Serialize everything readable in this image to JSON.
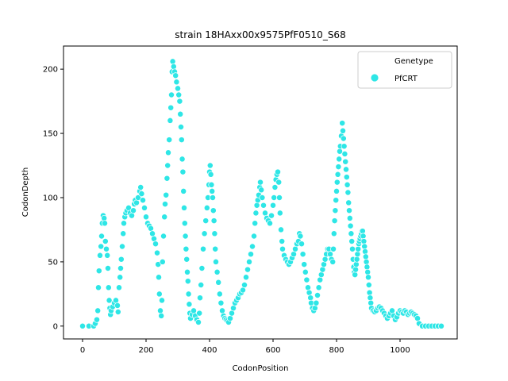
{
  "chart_data": {
    "type": "scatter",
    "title": "strain 18HAxx00x9575PfF0510_S68",
    "xlabel": "CodonPosition",
    "ylabel": "CodonDepth",
    "xlim": [
      -60,
      1180
    ],
    "ylim": [
      -10,
      218
    ],
    "xticks": [
      0,
      200,
      400,
      600,
      800,
      1000
    ],
    "yticks": [
      0,
      50,
      100,
      150,
      200
    ],
    "grid": false,
    "legend": {
      "title": "Genetype",
      "placement": "top-right",
      "entries": [
        {
          "name": "PfCRT",
          "color": "#2ee6e6"
        }
      ]
    },
    "series": [
      {
        "name": "PfCRT",
        "color": "#2ee6e6",
        "points": [
          [
            0,
            0
          ],
          [
            20,
            0
          ],
          [
            35,
            0
          ],
          [
            40,
            2
          ],
          [
            45,
            5
          ],
          [
            48,
            12
          ],
          [
            50,
            30
          ],
          [
            52,
            43
          ],
          [
            55,
            55
          ],
          [
            58,
            62
          ],
          [
            60,
            70
          ],
          [
            62,
            80
          ],
          [
            65,
            86
          ],
          [
            68,
            84
          ],
          [
            70,
            80
          ],
          [
            72,
            66
          ],
          [
            75,
            60
          ],
          [
            78,
            55
          ],
          [
            80,
            45
          ],
          [
            82,
            30
          ],
          [
            84,
            20
          ],
          [
            86,
            14
          ],
          [
            88,
            9
          ],
          [
            90,
            12
          ],
          [
            95,
            15
          ],
          [
            100,
            18
          ],
          [
            105,
            20
          ],
          [
            110,
            16
          ],
          [
            112,
            11
          ],
          [
            115,
            30
          ],
          [
            118,
            38
          ],
          [
            120,
            45
          ],
          [
            122,
            52
          ],
          [
            125,
            62
          ],
          [
            128,
            72
          ],
          [
            130,
            80
          ],
          [
            133,
            85
          ],
          [
            136,
            88
          ],
          [
            140,
            90
          ],
          [
            145,
            92
          ],
          [
            150,
            88
          ],
          [
            155,
            86
          ],
          [
            160,
            90
          ],
          [
            163,
            95
          ],
          [
            166,
            98
          ],
          [
            170,
            96
          ],
          [
            175,
            100
          ],
          [
            180,
            105
          ],
          [
            183,
            108
          ],
          [
            186,
            103
          ],
          [
            190,
            98
          ],
          [
            195,
            92
          ],
          [
            200,
            85
          ],
          [
            205,
            80
          ],
          [
            210,
            78
          ],
          [
            215,
            76
          ],
          [
            220,
            72
          ],
          [
            225,
            68
          ],
          [
            230,
            64
          ],
          [
            235,
            57
          ],
          [
            238,
            48
          ],
          [
            240,
            38
          ],
          [
            242,
            25
          ],
          [
            245,
            12
          ],
          [
            248,
            8
          ],
          [
            250,
            20
          ],
          [
            252,
            50
          ],
          [
            255,
            70
          ],
          [
            258,
            85
          ],
          [
            260,
            95
          ],
          [
            263,
            102
          ],
          [
            266,
            115
          ],
          [
            268,
            125
          ],
          [
            270,
            135
          ],
          [
            273,
            145
          ],
          [
            276,
            160
          ],
          [
            278,
            170
          ],
          [
            280,
            180
          ],
          [
            282,
            198
          ],
          [
            284,
            206
          ],
          [
            287,
            202
          ],
          [
            290,
            198
          ],
          [
            293,
            195
          ],
          [
            296,
            190
          ],
          [
            300,
            185
          ],
          [
            303,
            180
          ],
          [
            306,
            175
          ],
          [
            308,
            165
          ],
          [
            310,
            155
          ],
          [
            312,
            145
          ],
          [
            314,
            130
          ],
          [
            316,
            120
          ],
          [
            318,
            105
          ],
          [
            320,
            92
          ],
          [
            322,
            80
          ],
          [
            324,
            70
          ],
          [
            326,
            60
          ],
          [
            328,
            52
          ],
          [
            330,
            42
          ],
          [
            332,
            35
          ],
          [
            334,
            25
          ],
          [
            336,
            17
          ],
          [
            338,
            10
          ],
          [
            340,
            6
          ],
          [
            345,
            9
          ],
          [
            350,
            12
          ],
          [
            355,
            8
          ],
          [
            360,
            5
          ],
          [
            365,
            3
          ],
          [
            368,
            10
          ],
          [
            370,
            22
          ],
          [
            373,
            32
          ],
          [
            376,
            45
          ],
          [
            380,
            60
          ],
          [
            384,
            72
          ],
          [
            388,
            82
          ],
          [
            392,
            92
          ],
          [
            395,
            100
          ],
          [
            398,
            110
          ],
          [
            400,
            120
          ],
          [
            402,
            125
          ],
          [
            404,
            118
          ],
          [
            406,
            110
          ],
          [
            408,
            105
          ],
          [
            410,
            100
          ],
          [
            412,
            90
          ],
          [
            414,
            82
          ],
          [
            416,
            72
          ],
          [
            418,
            60
          ],
          [
            420,
            50
          ],
          [
            424,
            42
          ],
          [
            428,
            34
          ],
          [
            432,
            25
          ],
          [
            436,
            18
          ],
          [
            440,
            12
          ],
          [
            444,
            8
          ],
          [
            448,
            6
          ],
          [
            452,
            5
          ],
          [
            456,
            4
          ],
          [
            460,
            3
          ],
          [
            465,
            6
          ],
          [
            470,
            10
          ],
          [
            475,
            14
          ],
          [
            480,
            18
          ],
          [
            485,
            20
          ],
          [
            490,
            22
          ],
          [
            495,
            25
          ],
          [
            500,
            26
          ],
          [
            505,
            28
          ],
          [
            510,
            32
          ],
          [
            515,
            38
          ],
          [
            520,
            44
          ],
          [
            525,
            50
          ],
          [
            530,
            56
          ],
          [
            535,
            62
          ],
          [
            540,
            70
          ],
          [
            543,
            80
          ],
          [
            546,
            88
          ],
          [
            549,
            94
          ],
          [
            552,
            98
          ],
          [
            555,
            102
          ],
          [
            558,
            108
          ],
          [
            560,
            112
          ],
          [
            563,
            106
          ],
          [
            566,
            100
          ],
          [
            570,
            94
          ],
          [
            575,
            88
          ],
          [
            580,
            84
          ],
          [
            585,
            82
          ],
          [
            590,
            80
          ],
          [
            595,
            86
          ],
          [
            600,
            94
          ],
          [
            603,
            100
          ],
          [
            606,
            108
          ],
          [
            609,
            114
          ],
          [
            612,
            118
          ],
          [
            615,
            120
          ],
          [
            618,
            112
          ],
          [
            620,
            100
          ],
          [
            622,
            88
          ],
          [
            625,
            75
          ],
          [
            628,
            66
          ],
          [
            630,
            60
          ],
          [
            635,
            55
          ],
          [
            640,
            52
          ],
          [
            645,
            50
          ],
          [
            650,
            48
          ],
          [
            655,
            50
          ],
          [
            660,
            53
          ],
          [
            665,
            56
          ],
          [
            670,
            60
          ],
          [
            675,
            64
          ],
          [
            680,
            66
          ],
          [
            683,
            72
          ],
          [
            686,
            70
          ],
          [
            690,
            64
          ],
          [
            694,
            56
          ],
          [
            698,
            48
          ],
          [
            702,
            42
          ],
          [
            706,
            36
          ],
          [
            710,
            30
          ],
          [
            714,
            26
          ],
          [
            718,
            22
          ],
          [
            720,
            18
          ],
          [
            724,
            14
          ],
          [
            728,
            12
          ],
          [
            732,
            14
          ],
          [
            736,
            18
          ],
          [
            740,
            24
          ],
          [
            744,
            30
          ],
          [
            748,
            36
          ],
          [
            752,
            40
          ],
          [
            756,
            44
          ],
          [
            760,
            48
          ],
          [
            764,
            52
          ],
          [
            768,
            56
          ],
          [
            772,
            60
          ],
          [
            776,
            60
          ],
          [
            780,
            56
          ],
          [
            784,
            52
          ],
          [
            788,
            50
          ],
          [
            790,
            60
          ],
          [
            792,
            72
          ],
          [
            794,
            82
          ],
          [
            796,
            90
          ],
          [
            798,
            98
          ],
          [
            800,
            105
          ],
          [
            802,
            112
          ],
          [
            804,
            118
          ],
          [
            806,
            124
          ],
          [
            808,
            130
          ],
          [
            810,
            136
          ],
          [
            812,
            140
          ],
          [
            815,
            148
          ],
          [
            818,
            158
          ],
          [
            820,
            152
          ],
          [
            822,
            146
          ],
          [
            824,
            140
          ],
          [
            826,
            134
          ],
          [
            828,
            128
          ],
          [
            830,
            122
          ],
          [
            832,
            116
          ],
          [
            834,
            110
          ],
          [
            836,
            104
          ],
          [
            838,
            96
          ],
          [
            840,
            90
          ],
          [
            842,
            84
          ],
          [
            844,
            78
          ],
          [
            846,
            72
          ],
          [
            848,
            66
          ],
          [
            850,
            60
          ],
          [
            852,
            52
          ],
          [
            854,
            46
          ],
          [
            856,
            42
          ],
          [
            858,
            40
          ],
          [
            860,
            44
          ],
          [
            862,
            48
          ],
          [
            864,
            52
          ],
          [
            866,
            56
          ],
          [
            868,
            60
          ],
          [
            870,
            64
          ],
          [
            872,
            66
          ],
          [
            874,
            68
          ],
          [
            876,
            70
          ],
          [
            878,
            72
          ],
          [
            880,
            74
          ],
          [
            882,
            74
          ],
          [
            884,
            70
          ],
          [
            886,
            66
          ],
          [
            888,
            62
          ],
          [
            890,
            58
          ],
          [
            892,
            54
          ],
          [
            894,
            50
          ],
          [
            896,
            46
          ],
          [
            898,
            42
          ],
          [
            900,
            38
          ],
          [
            902,
            32
          ],
          [
            904,
            26
          ],
          [
            906,
            22
          ],
          [
            908,
            18
          ],
          [
            910,
            14
          ],
          [
            915,
            12
          ],
          [
            920,
            11
          ],
          [
            925,
            12
          ],
          [
            930,
            14
          ],
          [
            935,
            15
          ],
          [
            940,
            14
          ],
          [
            945,
            12
          ],
          [
            950,
            10
          ],
          [
            955,
            8
          ],
          [
            960,
            6
          ],
          [
            965,
            8
          ],
          [
            970,
            10
          ],
          [
            975,
            12
          ],
          [
            980,
            8
          ],
          [
            985,
            5
          ],
          [
            990,
            7
          ],
          [
            995,
            10
          ],
          [
            1000,
            12
          ],
          [
            1005,
            11
          ],
          [
            1010,
            10
          ],
          [
            1015,
            12
          ],
          [
            1020,
            11
          ],
          [
            1025,
            9
          ],
          [
            1030,
            10
          ],
          [
            1035,
            11
          ],
          [
            1040,
            10
          ],
          [
            1045,
            9
          ],
          [
            1050,
            8
          ],
          [
            1055,
            6
          ],
          [
            1060,
            2
          ],
          [
            1070,
            0
          ],
          [
            1080,
            0
          ],
          [
            1090,
            0
          ],
          [
            1100,
            0
          ],
          [
            1110,
            0
          ],
          [
            1120,
            0
          ],
          [
            1130,
            0
          ]
        ]
      }
    ]
  }
}
